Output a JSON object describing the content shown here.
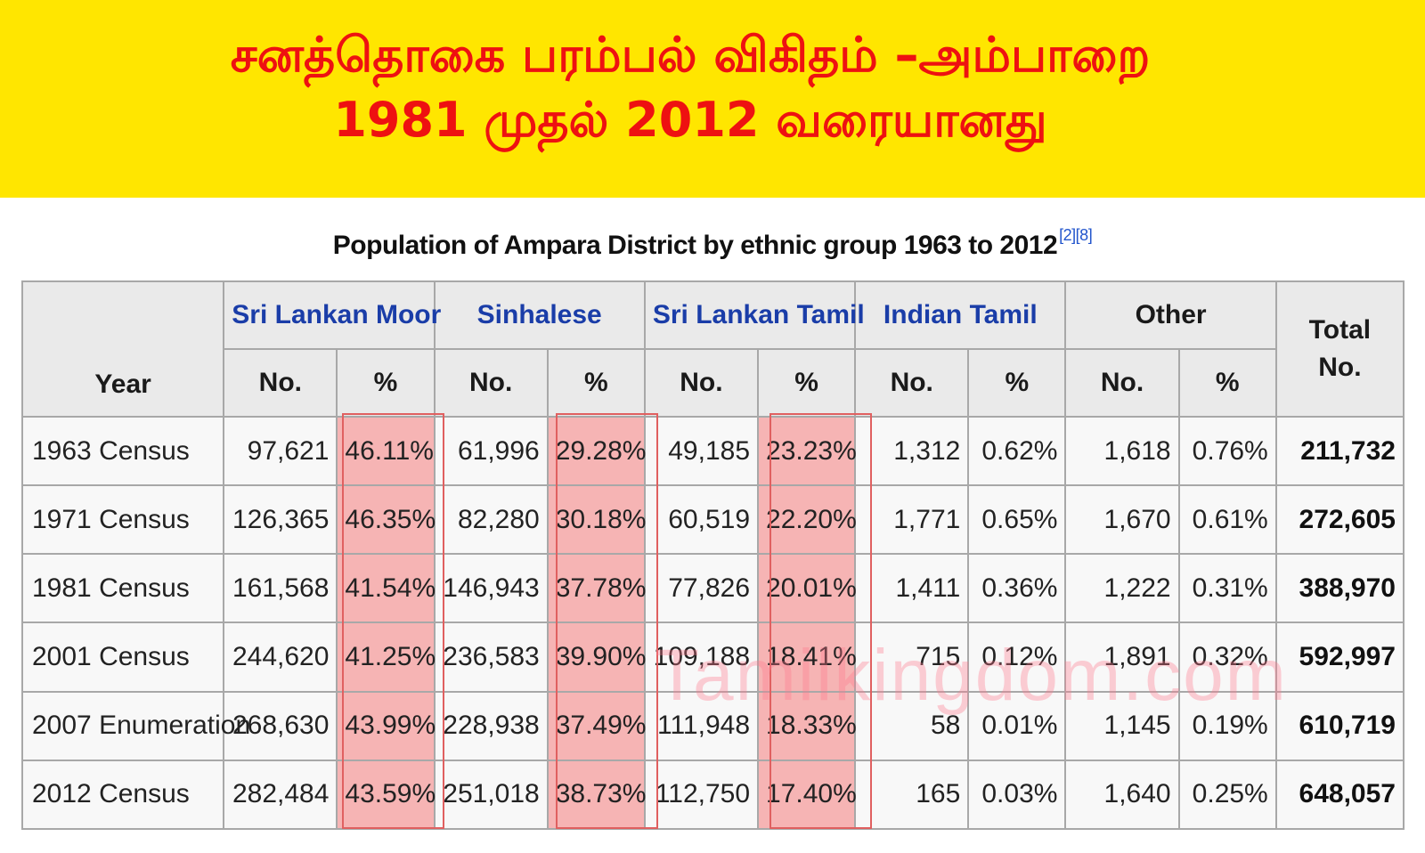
{
  "banner": {
    "line1": "சனத்தொகை பரம்பல் விகிதம் –அம்பாறை",
    "line2": "1981 முதல் 2012 வரையானது"
  },
  "table": {
    "caption": "Population of Ampara District by ethnic group 1963 to 2012",
    "caption_refs": "[2][8]",
    "year_header": "Year",
    "groups": [
      "Sri Lankan Moor",
      "Sinhalese",
      "Sri Lankan Tamil",
      "Indian Tamil",
      "Other"
    ],
    "total_header": "Total",
    "no_label": "No.",
    "pct_label": "%",
    "rows": [
      {
        "year": "1963 Census",
        "cells": [
          "97,621",
          "46.11%",
          "61,996",
          "29.28%",
          "49,185",
          "23.23%",
          "1,312",
          "0.62%",
          "1,618",
          "0.76%"
        ],
        "total": "211,732"
      },
      {
        "year": "1971 Census",
        "cells": [
          "126,365",
          "46.35%",
          "82,280",
          "30.18%",
          "60,519",
          "22.20%",
          "1,771",
          "0.65%",
          "1,670",
          "0.61%"
        ],
        "total": "272,605"
      },
      {
        "year": "1981 Census",
        "cells": [
          "161,568",
          "41.54%",
          "146,943",
          "37.78%",
          "77,826",
          "20.01%",
          "1,411",
          "0.36%",
          "1,222",
          "0.31%"
        ],
        "total": "388,970"
      },
      {
        "year": "2001 Census",
        "cells": [
          "244,620",
          "41.25%",
          "236,583",
          "39.90%",
          "109,188",
          "18.41%",
          "715",
          "0.12%",
          "1,891",
          "0.32%"
        ],
        "total": "592,997"
      },
      {
        "year": "2007 Enumeration",
        "cells": [
          "268,630",
          "43.99%",
          "228,938",
          "37.49%",
          "111,948",
          "18.33%",
          "58",
          "0.01%",
          "1,145",
          "0.19%"
        ],
        "total": "610,719"
      },
      {
        "year": "2012 Census",
        "cells": [
          "282,484",
          "43.59%",
          "251,018",
          "38.73%",
          "112,750",
          "17.40%",
          "165",
          "0.03%",
          "1,640",
          "0.25%"
        ],
        "total": "648,057"
      }
    ]
  },
  "watermark": "Tamilkingdom.com",
  "colors": {
    "banner_bg": "#ffe600",
    "banner_text": "#ee1111",
    "group_header_link": "#1a3da8",
    "highlight": "#f6b4b4"
  }
}
